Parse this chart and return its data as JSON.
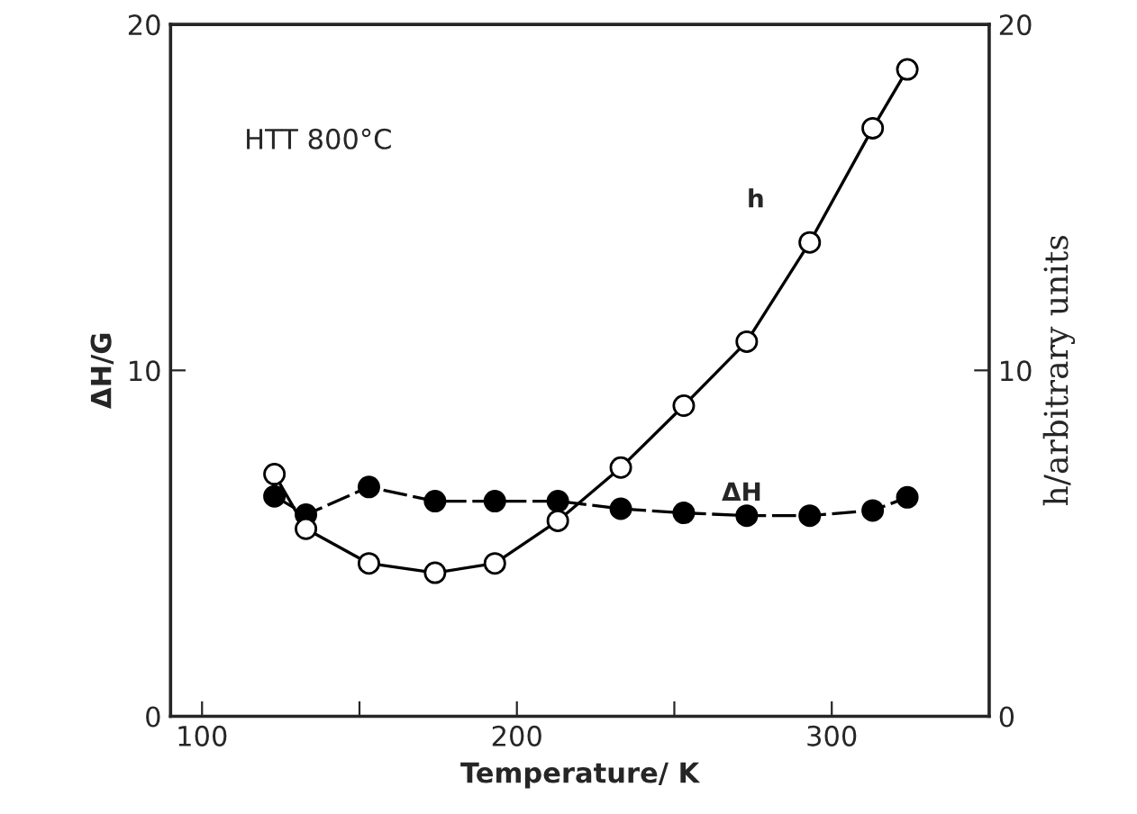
{
  "chart_data": {
    "type": "line",
    "xlabel": "Temperature/ K",
    "ylabel": "ΔH/G",
    "y2label": "h/arbitrary units",
    "x": [
      123,
      133,
      153,
      174,
      193,
      213,
      233,
      253,
      273,
      293,
      313,
      324
    ],
    "series": [
      {
        "name": "ΔH",
        "color": "#000000",
        "marker": "circle",
        "line_style": "dashed",
        "values": [
          6.36,
          5.83,
          6.63,
          6.22,
          6.22,
          6.22,
          6.0,
          5.88,
          5.8,
          5.8,
          5.95,
          6.33
        ]
      },
      {
        "name": "h",
        "color": "#000000",
        "marker": "circle",
        "line_style": "solid",
        "axis": "y2",
        "values": [
          7.0,
          5.42,
          4.42,
          4.15,
          4.42,
          5.65,
          7.19,
          8.98,
          10.83,
          13.7,
          17.0,
          18.7
        ]
      }
    ],
    "xlim": [
      90,
      350
    ],
    "xticks": [
      100,
      {
        "value": 150,
        "label": null
      },
      200,
      {
        "value": 250,
        "label": null
      },
      300
    ],
    "ylim": [
      0,
      20
    ],
    "yticks": [
      0,
      10,
      20
    ],
    "y2lim": [
      0,
      20
    ],
    "y2ticks": [
      0,
      10,
      20
    ],
    "annotations": [
      "HTT 800°C"
    ],
    "grid": false,
    "legend": false
  }
}
